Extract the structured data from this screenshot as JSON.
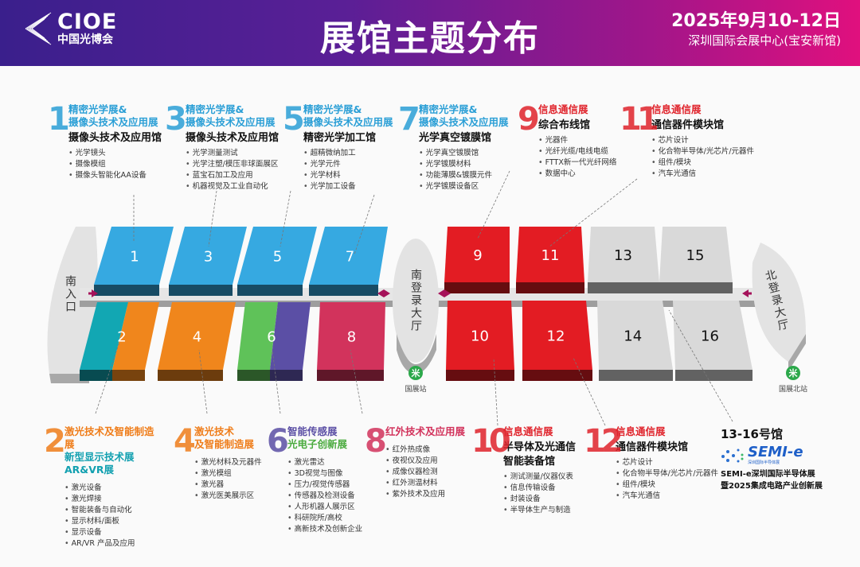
{
  "header": {
    "logo_en": "CIOE",
    "logo_cn": "中国光博会",
    "title": "展馆主题分布",
    "date": "2025年9月10-12日",
    "venue": "深圳国际会展中心(宝安新馆)"
  },
  "colors": {
    "blue": "#36a9e1",
    "teal": "#12a7b3",
    "orange": "#f0861c",
    "green": "#5fc259",
    "purple": "#5b4fa5",
    "crimson": "#d2335c",
    "red": "#e31c23",
    "gray": "#d9d9d9",
    "arrow": "#a5125a"
  },
  "top_blocks": [
    {
      "num": "1",
      "color": "#2b9fd6",
      "exhibit": [
        "精密光学展&",
        "摄像头技术及应用展"
      ],
      "hall": [
        "摄像头技术及应用馆"
      ],
      "items": [
        "光学镜头",
        "摄像模组",
        "摄像头智能化AA设备"
      ]
    },
    {
      "num": "3",
      "color": "#2b9fd6",
      "exhibit": [
        "精密光学展&",
        "摄像头技术及应用展"
      ],
      "hall": [
        "摄像头技术及应用馆"
      ],
      "items": [
        "光学测量测试",
        "光学注塑/模压非球面展区",
        "蓝宝石加工及应用",
        "机器视觉及工业自动化"
      ]
    },
    {
      "num": "5",
      "color": "#2b9fd6",
      "exhibit": [
        "精密光学展&",
        "摄像头技术及应用展"
      ],
      "hall": [
        "精密光学加工馆"
      ],
      "items": [
        "超精微纳加工",
        "光学元件",
        "光学材料",
        "光学加工设备"
      ]
    },
    {
      "num": "7",
      "color": "#2b9fd6",
      "exhibit": [
        "精密光学展&",
        "摄像头技术及应用展"
      ],
      "hall": [
        "光学真空镀膜馆"
      ],
      "items": [
        "光学真空镀膜馆",
        "光学镀膜材料",
        "功能薄膜&镀膜元件",
        "光学镀膜设备区"
      ]
    },
    {
      "num": "9",
      "color": "#e0242c",
      "exhibit": [
        "信息通信展"
      ],
      "hall": [
        "综合布线馆"
      ],
      "items": [
        "光器件",
        "光纤光缆/电线电缆",
        "FTTX新一代光纤网络",
        "数据中心"
      ]
    },
    {
      "num": "11",
      "color": "#e0242c",
      "exhibit": [
        "信息通信展"
      ],
      "hall": [
        "通信器件模块馆"
      ],
      "items": [
        "芯片设计",
        "化合物半导体/光芯片/元器件",
        "组件/模块",
        "汽车光通信"
      ]
    }
  ],
  "bottom_blocks": [
    {
      "num": "2",
      "color": "#ef7d1a",
      "exhibit": [
        "激光技术及智能制造展"
      ],
      "exhibit2": [
        "新型显示技术展",
        "AR&VR展"
      ],
      "color2": "#12a0b0",
      "hall": [],
      "items": [
        "激光设备",
        "激光焊接",
        "智能装备与自动化",
        "显示材料/面板",
        "显示设备",
        "AR/VR 产品及应用"
      ]
    },
    {
      "num": "4",
      "color": "#ef7d1a",
      "exhibit": [
        "激光技术",
        "及智能制造展"
      ],
      "hall": [],
      "items": [
        "激光材料及元器件",
        "激光模组",
        "激光器",
        "激光医美展示区"
      ]
    },
    {
      "num": "6",
      "color": "#5b4fa5",
      "exhibit": [
        "智能传感展"
      ],
      "exhibit2": [
        "光电子创新展"
      ],
      "color2": "#4aab3e",
      "hall": [],
      "items": [
        "激光雷达",
        "3D视觉与图像",
        "压力/视觉传感器",
        "传感器及检测设备",
        "人形机器人展示区",
        "科研院所/高校",
        "高新技术及创新企业"
      ]
    },
    {
      "num": "8",
      "color": "#d2335c",
      "exhibit": [
        "红外技术及应用展"
      ],
      "hall": [],
      "items": [
        "红外热成像",
        "夜视仪及应用",
        "成像仪器检测",
        "红外测温材料",
        "紫外技术及应用"
      ]
    },
    {
      "num": "10",
      "color": "#e0242c",
      "exhibit": [
        "信息通信展"
      ],
      "hall": [
        "半导体及光通信",
        "智能装备馆"
      ],
      "items": [
        "测试测量/仪器仪表",
        "信息传输设备",
        "封装设备",
        "半导体生产与制造"
      ]
    },
    {
      "num": "12",
      "color": "#e0242c",
      "exhibit": [
        "信息通信展"
      ],
      "hall": [
        "通信器件模块馆"
      ],
      "items": [
        "芯片设计",
        "化合物半导体/光芯片/元器件",
        "组件/模块",
        "汽车光通信"
      ]
    }
  ],
  "semi": {
    "heading": "13-16号馆",
    "logo_text": "SEMI-e",
    "logo_sub": "深圳国际半导体展",
    "lines": [
      "SEMI-e深圳国际半导体展",
      "暨2025集成电路产业创新展"
    ]
  },
  "map": {
    "halls": [
      {
        "label": "1",
        "color": "#36a9e1"
      },
      {
        "label": "3",
        "color": "#36a9e1"
      },
      {
        "label": "5",
        "color": "#36a9e1"
      },
      {
        "label": "7",
        "color": "#36a9e1"
      },
      {
        "label": "2",
        "color": "#12a7b3",
        "color2": "#f0861c"
      },
      {
        "label": "4",
        "color": "#f0861c"
      },
      {
        "label": "6",
        "color": "#5fc259",
        "color2": "#5b4fa5"
      },
      {
        "label": "8",
        "color": "#d2335c"
      },
      {
        "label": "9",
        "color": "#e31c23"
      },
      {
        "label": "11",
        "color": "#e31c23"
      },
      {
        "label": "13",
        "color": "#d9d9d9"
      },
      {
        "label": "15",
        "color": "#d9d9d9"
      },
      {
        "label": "10",
        "color": "#e31c23"
      },
      {
        "label": "12",
        "color": "#e31c23"
      },
      {
        "label": "14",
        "color": "#d9d9d9"
      },
      {
        "label": "16",
        "color": "#d9d9d9"
      }
    ],
    "south_entrance": "南入口",
    "south_hall": "南登录大厅",
    "north_hall": "北登录大厅",
    "south_station": "国展站",
    "north_station": "国展北站",
    "metro_icon": "metro-icon"
  }
}
